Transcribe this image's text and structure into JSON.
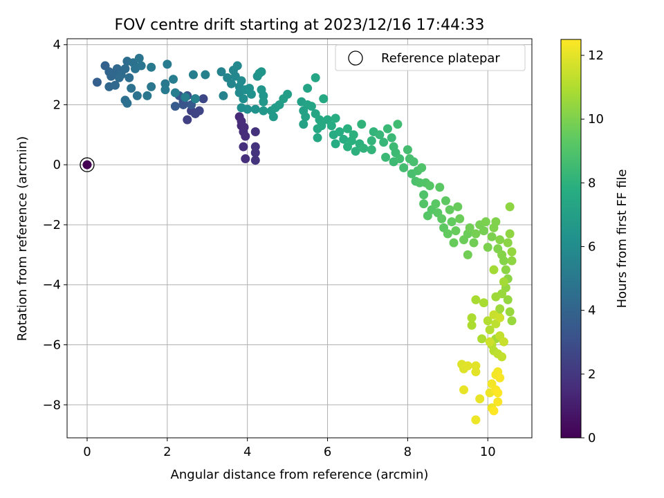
{
  "chart_data": {
    "type": "scatter",
    "title": "FOV centre drift starting at 2023/12/16 17:44:33",
    "xlabel": "Angular distance from reference (arcmin)",
    "ylabel": "Rotation from reference (arcmin)",
    "xlim": [
      -0.5,
      11.1
    ],
    "ylim": [
      -9.1,
      4.2
    ],
    "xticks": [
      0,
      2,
      4,
      6,
      8,
      10
    ],
    "yticks": [
      4,
      2,
      0,
      -2,
      -4,
      -6,
      -8
    ],
    "xtick_labels": [
      "0",
      "2",
      "4",
      "6",
      "8",
      "10"
    ],
    "ytick_labels": [
      "4",
      "2",
      "0",
      "−2",
      "−4",
      "−6",
      "−8"
    ],
    "grid": true,
    "colormap": "viridis",
    "colorbar": {
      "label": "Hours from first FF file",
      "range": [
        0,
        12.5
      ],
      "ticks": [
        0,
        2,
        4,
        6,
        8,
        10,
        12
      ],
      "tick_labels": [
        "0",
        "2",
        "4",
        "6",
        "8",
        "10",
        "12"
      ]
    },
    "legend": {
      "label": "Reference platepar",
      "placement": "top-right"
    },
    "reference_point": {
      "x": 0,
      "y": 0,
      "t": 0
    },
    "points": [
      {
        "x": 0.0,
        "y": 0.0,
        "t": 0.0
      },
      {
        "x": 3.8,
        "y": 1.6,
        "t": 1.5
      },
      {
        "x": 3.85,
        "y": 1.3,
        "t": 1.5
      },
      {
        "x": 3.9,
        "y": 1.1,
        "t": 1.6
      },
      {
        "x": 3.95,
        "y": 0.95,
        "t": 1.6
      },
      {
        "x": 3.9,
        "y": 0.6,
        "t": 1.7
      },
      {
        "x": 3.95,
        "y": 0.2,
        "t": 1.7
      },
      {
        "x": 3.85,
        "y": 1.45,
        "t": 1.6
      },
      {
        "x": 3.92,
        "y": 1.25,
        "t": 1.6
      },
      {
        "x": 4.2,
        "y": 1.1,
        "t": 1.8
      },
      {
        "x": 4.2,
        "y": 0.6,
        "t": 1.8
      },
      {
        "x": 4.2,
        "y": 0.4,
        "t": 1.9
      },
      {
        "x": 4.2,
        "y": 0.15,
        "t": 1.9
      },
      {
        "x": 2.5,
        "y": 1.5,
        "t": 2.4
      },
      {
        "x": 2.6,
        "y": 1.8,
        "t": 2.5
      },
      {
        "x": 2.7,
        "y": 1.7,
        "t": 2.6
      },
      {
        "x": 2.8,
        "y": 1.8,
        "t": 2.6
      },
      {
        "x": 2.9,
        "y": 2.2,
        "t": 2.7
      },
      {
        "x": 2.4,
        "y": 2.1,
        "t": 3.0
      },
      {
        "x": 2.5,
        "y": 2.3,
        "t": 3.2
      },
      {
        "x": 2.4,
        "y": 2.0,
        "t": 3.3
      },
      {
        "x": 2.3,
        "y": 2.3,
        "t": 3.4
      },
      {
        "x": 2.2,
        "y": 1.95,
        "t": 3.6
      },
      {
        "x": 2.6,
        "y": 2.0,
        "t": 3.5
      },
      {
        "x": 2.7,
        "y": 2.2,
        "t": 4.0
      },
      {
        "x": 0.25,
        "y": 2.75,
        "t": 3.8
      },
      {
        "x": 0.45,
        "y": 3.3,
        "t": 4.0
      },
      {
        "x": 0.55,
        "y": 3.1,
        "t": 4.1
      },
      {
        "x": 0.6,
        "y": 2.95,
        "t": 4.2
      },
      {
        "x": 0.55,
        "y": 2.6,
        "t": 4.2
      },
      {
        "x": 0.7,
        "y": 2.65,
        "t": 4.3
      },
      {
        "x": 0.75,
        "y": 3.2,
        "t": 4.3
      },
      {
        "x": 0.85,
        "y": 3.0,
        "t": 4.4
      },
      {
        "x": 0.95,
        "y": 3.2,
        "t": 4.4
      },
      {
        "x": 1.0,
        "y": 3.45,
        "t": 4.5
      },
      {
        "x": 1.05,
        "y": 2.9,
        "t": 4.5
      },
      {
        "x": 0.95,
        "y": 2.15,
        "t": 4.6
      },
      {
        "x": 1.0,
        "y": 2.05,
        "t": 4.6
      },
      {
        "x": 1.1,
        "y": 2.55,
        "t": 4.7
      },
      {
        "x": 1.15,
        "y": 3.4,
        "t": 4.7
      },
      {
        "x": 1.2,
        "y": 3.2,
        "t": 4.8
      },
      {
        "x": 1.25,
        "y": 2.3,
        "t": 4.8
      },
      {
        "x": 1.3,
        "y": 3.55,
        "t": 4.9
      },
      {
        "x": 1.35,
        "y": 3.3,
        "t": 4.9
      },
      {
        "x": 1.5,
        "y": 2.3,
        "t": 5.0
      },
      {
        "x": 1.6,
        "y": 2.6,
        "t": 5.0
      },
      {
        "x": 1.6,
        "y": 3.25,
        "t": 5.1
      },
      {
        "x": 1.95,
        "y": 2.7,
        "t": 5.1
      },
      {
        "x": 1.95,
        "y": 2.5,
        "t": 5.2
      },
      {
        "x": 2.0,
        "y": 3.35,
        "t": 5.2
      },
      {
        "x": 2.15,
        "y": 2.85,
        "t": 5.3
      },
      {
        "x": 2.2,
        "y": 2.4,
        "t": 5.3
      },
      {
        "x": 2.45,
        "y": 2.25,
        "t": 5.4
      },
      {
        "x": 2.65,
        "y": 3.0,
        "t": 5.4
      },
      {
        "x": 2.7,
        "y": 2.2,
        "t": 5.5
      },
      {
        "x": 2.95,
        "y": 3.0,
        "t": 5.5
      },
      {
        "x": 0.65,
        "y": 3.05,
        "t": 4.2
      },
      {
        "x": 0.8,
        "y": 2.9,
        "t": 4.4
      },
      {
        "x": 3.35,
        "y": 3.1,
        "t": 5.6
      },
      {
        "x": 3.4,
        "y": 2.3,
        "t": 5.6
      },
      {
        "x": 3.5,
        "y": 2.9,
        "t": 5.7
      },
      {
        "x": 3.6,
        "y": 2.7,
        "t": 5.7
      },
      {
        "x": 3.65,
        "y": 3.15,
        "t": 5.8
      },
      {
        "x": 3.7,
        "y": 2.95,
        "t": 5.8
      },
      {
        "x": 3.75,
        "y": 3.3,
        "t": 5.9
      },
      {
        "x": 3.8,
        "y": 2.6,
        "t": 5.9
      },
      {
        "x": 3.8,
        "y": 2.4,
        "t": 6.0
      },
      {
        "x": 3.85,
        "y": 2.8,
        "t": 6.0
      },
      {
        "x": 3.85,
        "y": 1.9,
        "t": 6.1
      },
      {
        "x": 3.9,
        "y": 2.2,
        "t": 6.1
      },
      {
        "x": 3.95,
        "y": 2.5,
        "t": 6.2
      },
      {
        "x": 4.0,
        "y": 1.85,
        "t": 6.2
      },
      {
        "x": 4.05,
        "y": 2.55,
        "t": 6.3
      },
      {
        "x": 4.1,
        "y": 2.35,
        "t": 6.3
      },
      {
        "x": 4.2,
        "y": 1.85,
        "t": 6.4
      },
      {
        "x": 4.25,
        "y": 2.95,
        "t": 6.4
      },
      {
        "x": 4.3,
        "y": 3.05,
        "t": 6.5
      },
      {
        "x": 4.35,
        "y": 3.1,
        "t": 6.5
      },
      {
        "x": 4.35,
        "y": 2.5,
        "t": 6.6
      },
      {
        "x": 4.4,
        "y": 2.3,
        "t": 6.6
      },
      {
        "x": 4.4,
        "y": 2.1,
        "t": 6.7
      },
      {
        "x": 4.4,
        "y": 1.8,
        "t": 6.7
      },
      {
        "x": 4.6,
        "y": 1.8,
        "t": 6.8
      },
      {
        "x": 4.65,
        "y": 1.6,
        "t": 6.8
      },
      {
        "x": 4.7,
        "y": 1.9,
        "t": 6.9
      },
      {
        "x": 4.8,
        "y": 2.0,
        "t": 6.9
      },
      {
        "x": 4.9,
        "y": 2.2,
        "t": 7.0
      },
      {
        "x": 5.0,
        "y": 2.35,
        "t": 7.0
      },
      {
        "x": 5.35,
        "y": 2.1,
        "t": 7.1
      },
      {
        "x": 5.4,
        "y": 1.8,
        "t": 7.1
      },
      {
        "x": 5.4,
        "y": 1.35,
        "t": 7.2
      },
      {
        "x": 5.45,
        "y": 1.6,
        "t": 7.2
      },
      {
        "x": 5.5,
        "y": 2.0,
        "t": 7.3
      },
      {
        "x": 5.5,
        "y": 2.55,
        "t": 7.3
      },
      {
        "x": 5.6,
        "y": 1.95,
        "t": 7.3
      },
      {
        "x": 5.7,
        "y": 1.7,
        "t": 7.4
      },
      {
        "x": 5.7,
        "y": 2.9,
        "t": 7.4
      },
      {
        "x": 5.75,
        "y": 1.2,
        "t": 7.5
      },
      {
        "x": 5.75,
        "y": 0.9,
        "t": 7.5
      },
      {
        "x": 5.8,
        "y": 1.5,
        "t": 7.5
      },
      {
        "x": 5.85,
        "y": 1.3,
        "t": 7.6
      },
      {
        "x": 5.9,
        "y": 2.2,
        "t": 7.6
      },
      {
        "x": 6.0,
        "y": 1.5,
        "t": 7.6
      },
      {
        "x": 6.1,
        "y": 1.3,
        "t": 7.7
      },
      {
        "x": 6.15,
        "y": 1.0,
        "t": 7.7
      },
      {
        "x": 6.2,
        "y": 0.7,
        "t": 7.7
      },
      {
        "x": 6.2,
        "y": 1.55,
        "t": 7.8
      },
      {
        "x": 6.3,
        "y": 1.1,
        "t": 7.8
      },
      {
        "x": 6.4,
        "y": 0.85,
        "t": 7.8
      },
      {
        "x": 6.5,
        "y": 1.2,
        "t": 7.9
      },
      {
        "x": 6.5,
        "y": 0.6,
        "t": 7.9
      },
      {
        "x": 6.6,
        "y": 0.8,
        "t": 7.9
      },
      {
        "x": 6.65,
        "y": 1.0,
        "t": 8.0
      },
      {
        "x": 6.7,
        "y": 0.45,
        "t": 8.0
      },
      {
        "x": 6.8,
        "y": 0.7,
        "t": 8.0
      },
      {
        "x": 6.85,
        "y": 1.35,
        "t": 8.1
      },
      {
        "x": 6.9,
        "y": 0.55,
        "t": 8.1
      },
      {
        "x": 7.1,
        "y": 0.8,
        "t": 8.2
      },
      {
        "x": 7.1,
        "y": 0.5,
        "t": 8.2
      },
      {
        "x": 7.15,
        "y": 1.1,
        "t": 8.2
      },
      {
        "x": 7.3,
        "y": 1.0,
        "t": 8.3
      },
      {
        "x": 7.4,
        "y": 0.75,
        "t": 8.3
      },
      {
        "x": 7.45,
        "y": 0.25,
        "t": 8.4
      },
      {
        "x": 7.5,
        "y": 1.2,
        "t": 8.4
      },
      {
        "x": 7.6,
        "y": 0.9,
        "t": 8.4
      },
      {
        "x": 7.65,
        "y": 0.6,
        "t": 8.5
      },
      {
        "x": 7.65,
        "y": 0.1,
        "t": 8.5
      },
      {
        "x": 7.7,
        "y": 0.4,
        "t": 8.5
      },
      {
        "x": 7.75,
        "y": 1.35,
        "t": 8.6
      },
      {
        "x": 7.8,
        "y": 0.2,
        "t": 8.6
      },
      {
        "x": 7.9,
        "y": -0.1,
        "t": 8.7
      },
      {
        "x": 8.0,
        "y": 0.5,
        "t": 8.7
      },
      {
        "x": 8.05,
        "y": 0.2,
        "t": 8.8
      },
      {
        "x": 8.1,
        "y": -0.3,
        "t": 8.8
      },
      {
        "x": 8.15,
        "y": 0.1,
        "t": 8.8
      },
      {
        "x": 8.2,
        "y": -0.55,
        "t": 8.9
      },
      {
        "x": 8.25,
        "y": -0.2,
        "t": 8.9
      },
      {
        "x": 8.3,
        "y": -0.6,
        "t": 9.0
      },
      {
        "x": 8.35,
        "y": -0.1,
        "t": 9.0
      },
      {
        "x": 8.4,
        "y": -1.0,
        "t": 9.0
      },
      {
        "x": 8.4,
        "y": -1.3,
        "t": 9.1
      },
      {
        "x": 8.45,
        "y": -0.6,
        "t": 9.1
      },
      {
        "x": 8.5,
        "y": -1.7,
        "t": 9.2
      },
      {
        "x": 8.55,
        "y": -0.7,
        "t": 9.2
      },
      {
        "x": 8.6,
        "y": -1.5,
        "t": 9.2
      },
      {
        "x": 8.7,
        "y": -1.3,
        "t": 9.3
      },
      {
        "x": 8.75,
        "y": -1.6,
        "t": 9.3
      },
      {
        "x": 8.8,
        "y": -0.75,
        "t": 9.3
      },
      {
        "x": 8.85,
        "y": -1.8,
        "t": 9.4
      },
      {
        "x": 8.9,
        "y": -2.1,
        "t": 9.4
      },
      {
        "x": 8.95,
        "y": -1.2,
        "t": 9.4
      },
      {
        "x": 9.0,
        "y": -2.3,
        "t": 9.5
      },
      {
        "x": 9.05,
        "y": -1.5,
        "t": 9.5
      },
      {
        "x": 9.1,
        "y": -1.9,
        "t": 9.5
      },
      {
        "x": 9.15,
        "y": -2.6,
        "t": 9.6
      },
      {
        "x": 9.2,
        "y": -2.2,
        "t": 9.6
      },
      {
        "x": 9.25,
        "y": -1.4,
        "t": 9.6
      },
      {
        "x": 9.3,
        "y": -1.8,
        "t": 9.7
      },
      {
        "x": 9.4,
        "y": -2.5,
        "t": 9.7
      },
      {
        "x": 9.5,
        "y": -2.3,
        "t": 9.7
      },
      {
        "x": 9.5,
        "y": -3.0,
        "t": 9.8
      },
      {
        "x": 9.55,
        "y": -2.1,
        "t": 9.8
      },
      {
        "x": 9.65,
        "y": -2.6,
        "t": 9.8
      },
      {
        "x": 9.7,
        "y": -2.3,
        "t": 9.9
      },
      {
        "x": 9.8,
        "y": -2.0,
        "t": 9.9
      },
      {
        "x": 9.9,
        "y": -2.2,
        "t": 9.9
      },
      {
        "x": 9.95,
        "y": -1.9,
        "t": 10.0
      },
      {
        "x": 10.0,
        "y": -2.75,
        "t": 10.0
      },
      {
        "x": 10.1,
        "y": -2.4,
        "t": 10.0
      },
      {
        "x": 10.15,
        "y": -2.1,
        "t": 10.1
      },
      {
        "x": 10.2,
        "y": -1.9,
        "t": 10.1
      },
      {
        "x": 10.25,
        "y": -2.8,
        "t": 10.1
      },
      {
        "x": 10.3,
        "y": -2.5,
        "t": 10.2
      },
      {
        "x": 10.35,
        "y": -3.0,
        "t": 10.2
      },
      {
        "x": 10.4,
        "y": -3.2,
        "t": 10.2
      },
      {
        "x": 10.45,
        "y": -3.5,
        "t": 10.3
      },
      {
        "x": 10.5,
        "y": -2.6,
        "t": 10.3
      },
      {
        "x": 10.5,
        "y": -3.8,
        "t": 10.3
      },
      {
        "x": 10.55,
        "y": -2.3,
        "t": 10.4
      },
      {
        "x": 10.55,
        "y": -1.4,
        "t": 10.4
      },
      {
        "x": 10.6,
        "y": -3.2,
        "t": 10.4
      },
      {
        "x": 10.6,
        "y": -2.9,
        "t": 10.5
      },
      {
        "x": 10.45,
        "y": -4.1,
        "t": 10.5
      },
      {
        "x": 10.5,
        "y": -4.5,
        "t": 10.5
      },
      {
        "x": 10.55,
        "y": -4.9,
        "t": 10.6
      },
      {
        "x": 10.6,
        "y": -5.2,
        "t": 10.6
      },
      {
        "x": 10.35,
        "y": -4.3,
        "t": 10.6
      },
      {
        "x": 10.3,
        "y": -4.8,
        "t": 10.7
      },
      {
        "x": 10.25,
        "y": -5.0,
        "t": 10.7
      },
      {
        "x": 10.2,
        "y": -4.4,
        "t": 10.7
      },
      {
        "x": 10.15,
        "y": -3.5,
        "t": 10.8
      },
      {
        "x": 10.4,
        "y": -3.9,
        "t": 10.8
      },
      {
        "x": 10.2,
        "y": -5.8,
        "t": 10.8
      },
      {
        "x": 9.7,
        "y": -4.5,
        "t": 10.9
      },
      {
        "x": 9.9,
        "y": -4.6,
        "t": 10.9
      },
      {
        "x": 9.6,
        "y": -5.1,
        "t": 11.0
      },
      {
        "x": 9.6,
        "y": -5.35,
        "t": 11.0
      },
      {
        "x": 9.85,
        "y": -5.8,
        "t": 11.0
      },
      {
        "x": 10.0,
        "y": -5.2,
        "t": 11.1
      },
      {
        "x": 10.05,
        "y": -5.5,
        "t": 11.1
      },
      {
        "x": 10.1,
        "y": -6.0,
        "t": 11.2
      },
      {
        "x": 10.15,
        "y": -6.2,
        "t": 11.2
      },
      {
        "x": 10.2,
        "y": -5.3,
        "t": 11.3
      },
      {
        "x": 10.25,
        "y": -6.3,
        "t": 11.3
      },
      {
        "x": 10.3,
        "y": -5.7,
        "t": 11.4
      },
      {
        "x": 10.35,
        "y": -6.4,
        "t": 11.4
      },
      {
        "x": 10.4,
        "y": -5.9,
        "t": 11.5
      },
      {
        "x": 10.15,
        "y": -5.0,
        "t": 11.5
      },
      {
        "x": 10.3,
        "y": -5.1,
        "t": 11.6
      },
      {
        "x": 10.05,
        "y": -5.9,
        "t": 11.6
      },
      {
        "x": 9.35,
        "y": -6.65,
        "t": 11.9
      },
      {
        "x": 9.4,
        "y": -6.8,
        "t": 11.9
      },
      {
        "x": 9.5,
        "y": -6.7,
        "t": 12.0
      },
      {
        "x": 9.7,
        "y": -6.9,
        "t": 12.0
      },
      {
        "x": 9.7,
        "y": -6.7,
        "t": 12.0
      },
      {
        "x": 9.4,
        "y": -7.5,
        "t": 12.1
      },
      {
        "x": 9.8,
        "y": -7.8,
        "t": 12.1
      },
      {
        "x": 9.7,
        "y": -8.5,
        "t": 12.2
      },
      {
        "x": 10.1,
        "y": -8.1,
        "t": 12.2
      },
      {
        "x": 10.05,
        "y": -7.6,
        "t": 12.2
      },
      {
        "x": 10.1,
        "y": -7.3,
        "t": 12.3
      },
      {
        "x": 10.2,
        "y": -7.0,
        "t": 12.3
      },
      {
        "x": 10.25,
        "y": -6.9,
        "t": 12.3
      },
      {
        "x": 10.2,
        "y": -7.5,
        "t": 12.4
      },
      {
        "x": 10.25,
        "y": -7.9,
        "t": 12.4
      },
      {
        "x": 10.3,
        "y": -7.1,
        "t": 12.4
      },
      {
        "x": 10.25,
        "y": -7.6,
        "t": 12.5
      },
      {
        "x": 10.15,
        "y": -8.2,
        "t": 12.5
      }
    ]
  }
}
